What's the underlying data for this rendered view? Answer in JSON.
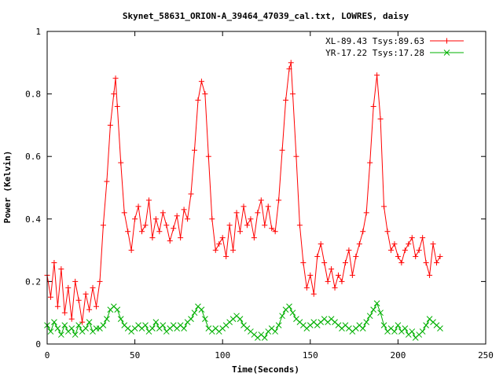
{
  "chart_data": {
    "type": "line",
    "title": "Skynet_58631_ORION-A_39464_47039_cal.txt, LOWRES, daisy",
    "xlabel": "Time(Seconds)",
    "ylabel": "Power (Kelvin)",
    "xlim": [
      0,
      250
    ],
    "ylim": [
      0,
      1
    ],
    "xticks": [
      0,
      50,
      100,
      150,
      200,
      250
    ],
    "yticks": [
      0,
      0.2,
      0.4,
      0.6,
      0.8,
      1
    ],
    "xtick_labels": [
      "0",
      "50",
      "100",
      "150",
      "200",
      "250"
    ],
    "ytick_labels": [
      "0",
      "0.2",
      "0.4",
      "0.6",
      "0.8",
      "1"
    ],
    "grid": false,
    "legend_position": "top-right",
    "series": [
      {
        "name": "XL-89.43 Tsys:89.63",
        "color": "#ff0000",
        "marker": "plus",
        "points": [
          [
            0,
            0.22
          ],
          [
            2,
            0.15
          ],
          [
            4,
            0.26
          ],
          [
            6,
            0.12
          ],
          [
            8,
            0.24
          ],
          [
            10,
            0.1
          ],
          [
            12,
            0.18
          ],
          [
            14,
            0.08
          ],
          [
            16,
            0.2
          ],
          [
            18,
            0.14
          ],
          [
            20,
            0.07
          ],
          [
            22,
            0.16
          ],
          [
            24,
            0.11
          ],
          [
            26,
            0.18
          ],
          [
            28,
            0.12
          ],
          [
            30,
            0.2
          ],
          [
            32,
            0.38
          ],
          [
            34,
            0.52
          ],
          [
            36,
            0.7
          ],
          [
            38,
            0.8
          ],
          [
            39,
            0.85
          ],
          [
            40,
            0.76
          ],
          [
            42,
            0.58
          ],
          [
            44,
            0.42
          ],
          [
            46,
            0.36
          ],
          [
            48,
            0.3
          ],
          [
            50,
            0.4
          ],
          [
            52,
            0.44
          ],
          [
            54,
            0.36
          ],
          [
            56,
            0.38
          ],
          [
            58,
            0.46
          ],
          [
            60,
            0.34
          ],
          [
            62,
            0.4
          ],
          [
            64,
            0.36
          ],
          [
            66,
            0.42
          ],
          [
            68,
            0.38
          ],
          [
            70,
            0.33
          ],
          [
            72,
            0.37
          ],
          [
            74,
            0.41
          ],
          [
            76,
            0.34
          ],
          [
            78,
            0.43
          ],
          [
            80,
            0.4
          ],
          [
            82,
            0.48
          ],
          [
            84,
            0.62
          ],
          [
            86,
            0.78
          ],
          [
            88,
            0.84
          ],
          [
            90,
            0.8
          ],
          [
            92,
            0.6
          ],
          [
            94,
            0.4
          ],
          [
            96,
            0.3
          ],
          [
            98,
            0.32
          ],
          [
            100,
            0.34
          ],
          [
            102,
            0.28
          ],
          [
            104,
            0.38
          ],
          [
            106,
            0.3
          ],
          [
            108,
            0.42
          ],
          [
            110,
            0.36
          ],
          [
            112,
            0.44
          ],
          [
            114,
            0.38
          ],
          [
            116,
            0.4
          ],
          [
            118,
            0.34
          ],
          [
            120,
            0.42
          ],
          [
            122,
            0.46
          ],
          [
            124,
            0.38
          ],
          [
            126,
            0.44
          ],
          [
            128,
            0.37
          ],
          [
            130,
            0.36
          ],
          [
            132,
            0.46
          ],
          [
            134,
            0.62
          ],
          [
            136,
            0.78
          ],
          [
            138,
            0.88
          ],
          [
            139,
            0.9
          ],
          [
            140,
            0.8
          ],
          [
            142,
            0.6
          ],
          [
            144,
            0.38
          ],
          [
            146,
            0.26
          ],
          [
            148,
            0.18
          ],
          [
            150,
            0.22
          ],
          [
            152,
            0.16
          ],
          [
            154,
            0.28
          ],
          [
            156,
            0.32
          ],
          [
            158,
            0.26
          ],
          [
            160,
            0.2
          ],
          [
            162,
            0.24
          ],
          [
            164,
            0.18
          ],
          [
            166,
            0.22
          ],
          [
            168,
            0.2
          ],
          [
            170,
            0.26
          ],
          [
            172,
            0.3
          ],
          [
            174,
            0.22
          ],
          [
            176,
            0.28
          ],
          [
            178,
            0.32
          ],
          [
            180,
            0.36
          ],
          [
            182,
            0.42
          ],
          [
            184,
            0.58
          ],
          [
            186,
            0.76
          ],
          [
            188,
            0.86
          ],
          [
            190,
            0.72
          ],
          [
            192,
            0.44
          ],
          [
            194,
            0.36
          ],
          [
            196,
            0.3
          ],
          [
            198,
            0.32
          ],
          [
            200,
            0.28
          ],
          [
            202,
            0.26
          ],
          [
            204,
            0.3
          ],
          [
            206,
            0.32
          ],
          [
            208,
            0.34
          ],
          [
            210,
            0.28
          ],
          [
            212,
            0.3
          ],
          [
            214,
            0.34
          ],
          [
            216,
            0.26
          ],
          [
            218,
            0.22
          ],
          [
            220,
            0.32
          ],
          [
            222,
            0.26
          ],
          [
            224,
            0.28
          ]
        ]
      },
      {
        "name": "YR-17.22 Tsys:17.28",
        "color": "#00b000",
        "marker": "cross",
        "points": [
          [
            0,
            0.06
          ],
          [
            2,
            0.04
          ],
          [
            4,
            0.07
          ],
          [
            6,
            0.05
          ],
          [
            8,
            0.03
          ],
          [
            10,
            0.06
          ],
          [
            12,
            0.04
          ],
          [
            14,
            0.05
          ],
          [
            16,
            0.03
          ],
          [
            18,
            0.06
          ],
          [
            20,
            0.04
          ],
          [
            22,
            0.05
          ],
          [
            24,
            0.07
          ],
          [
            26,
            0.04
          ],
          [
            28,
            0.05
          ],
          [
            30,
            0.05
          ],
          [
            32,
            0.06
          ],
          [
            34,
            0.08
          ],
          [
            36,
            0.11
          ],
          [
            38,
            0.12
          ],
          [
            40,
            0.11
          ],
          [
            42,
            0.08
          ],
          [
            44,
            0.06
          ],
          [
            46,
            0.05
          ],
          [
            48,
            0.04
          ],
          [
            50,
            0.05
          ],
          [
            52,
            0.06
          ],
          [
            54,
            0.05
          ],
          [
            56,
            0.06
          ],
          [
            58,
            0.04
          ],
          [
            60,
            0.05
          ],
          [
            62,
            0.07
          ],
          [
            64,
            0.05
          ],
          [
            66,
            0.06
          ],
          [
            68,
            0.04
          ],
          [
            70,
            0.05
          ],
          [
            72,
            0.06
          ],
          [
            74,
            0.05
          ],
          [
            76,
            0.06
          ],
          [
            78,
            0.05
          ],
          [
            80,
            0.07
          ],
          [
            82,
            0.08
          ],
          [
            84,
            0.1
          ],
          [
            86,
            0.12
          ],
          [
            88,
            0.11
          ],
          [
            90,
            0.08
          ],
          [
            92,
            0.05
          ],
          [
            94,
            0.04
          ],
          [
            96,
            0.05
          ],
          [
            98,
            0.04
          ],
          [
            100,
            0.05
          ],
          [
            102,
            0.06
          ],
          [
            104,
            0.07
          ],
          [
            106,
            0.08
          ],
          [
            108,
            0.09
          ],
          [
            110,
            0.08
          ],
          [
            112,
            0.06
          ],
          [
            114,
            0.05
          ],
          [
            116,
            0.04
          ],
          [
            118,
            0.03
          ],
          [
            120,
            0.02
          ],
          [
            122,
            0.03
          ],
          [
            124,
            0.02
          ],
          [
            126,
            0.04
          ],
          [
            128,
            0.05
          ],
          [
            130,
            0.04
          ],
          [
            132,
            0.06
          ],
          [
            134,
            0.09
          ],
          [
            136,
            0.11
          ],
          [
            138,
            0.12
          ],
          [
            140,
            0.1
          ],
          [
            142,
            0.08
          ],
          [
            144,
            0.07
          ],
          [
            146,
            0.06
          ],
          [
            148,
            0.05
          ],
          [
            150,
            0.06
          ],
          [
            152,
            0.07
          ],
          [
            154,
            0.06
          ],
          [
            156,
            0.07
          ],
          [
            158,
            0.08
          ],
          [
            160,
            0.07
          ],
          [
            162,
            0.08
          ],
          [
            164,
            0.07
          ],
          [
            166,
            0.06
          ],
          [
            168,
            0.05
          ],
          [
            170,
            0.06
          ],
          [
            172,
            0.05
          ],
          [
            174,
            0.04
          ],
          [
            176,
            0.05
          ],
          [
            178,
            0.06
          ],
          [
            180,
            0.05
          ],
          [
            182,
            0.07
          ],
          [
            184,
            0.09
          ],
          [
            186,
            0.11
          ],
          [
            188,
            0.13
          ],
          [
            190,
            0.1
          ],
          [
            192,
            0.06
          ],
          [
            194,
            0.04
          ],
          [
            196,
            0.05
          ],
          [
            198,
            0.04
          ],
          [
            200,
            0.06
          ],
          [
            202,
            0.04
          ],
          [
            204,
            0.05
          ],
          [
            206,
            0.03
          ],
          [
            208,
            0.04
          ],
          [
            210,
            0.02
          ],
          [
            212,
            0.03
          ],
          [
            214,
            0.04
          ],
          [
            216,
            0.06
          ],
          [
            218,
            0.08
          ],
          [
            220,
            0.07
          ],
          [
            222,
            0.06
          ],
          [
            224,
            0.05
          ]
        ]
      }
    ]
  }
}
